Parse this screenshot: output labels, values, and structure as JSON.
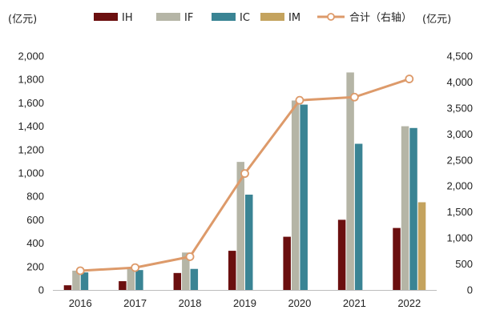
{
  "chart_data": {
    "type": "bar+line",
    "left_axis_unit": "(亿元)",
    "right_axis_unit": "(亿元)",
    "categories": [
      "2016",
      "2017",
      "2018",
      "2019",
      "2020",
      "2021",
      "2022"
    ],
    "left_ylim": [
      0,
      2000
    ],
    "left_yticks": [
      "0",
      "200",
      "400",
      "600",
      "800",
      "1,000",
      "1,200",
      "1,400",
      "1,600",
      "1,800",
      "2,000"
    ],
    "right_ylim": [
      0,
      4500
    ],
    "right_yticks": [
      "0",
      "500",
      "1,000",
      "1,500",
      "2,000",
      "2,500",
      "3,000",
      "3,500",
      "4,000",
      "4,500"
    ],
    "series": [
      {
        "name": "IH",
        "type": "bar",
        "axis": "left",
        "color": "#6b0f0f",
        "values": [
          40,
          75,
          145,
          335,
          455,
          600,
          530
        ]
      },
      {
        "name": "IF",
        "type": "bar",
        "axis": "left",
        "color": "#b5b5a6",
        "values": [
          165,
          185,
          320,
          1095,
          1620,
          1860,
          1400
        ]
      },
      {
        "name": "IC",
        "type": "bar",
        "axis": "left",
        "color": "#3a8494",
        "values": [
          150,
          170,
          180,
          815,
          1585,
          1250,
          1385
        ]
      },
      {
        "name": "IM",
        "type": "bar",
        "axis": "left",
        "color": "#c4a35e",
        "values": [
          null,
          null,
          null,
          null,
          null,
          null,
          750
        ]
      },
      {
        "name": "合计（右轴）",
        "type": "line",
        "axis": "right",
        "color": "#dd9a6a",
        "values": [
          370,
          430,
          640,
          2240,
          3650,
          3710,
          4060
        ]
      }
    ]
  }
}
